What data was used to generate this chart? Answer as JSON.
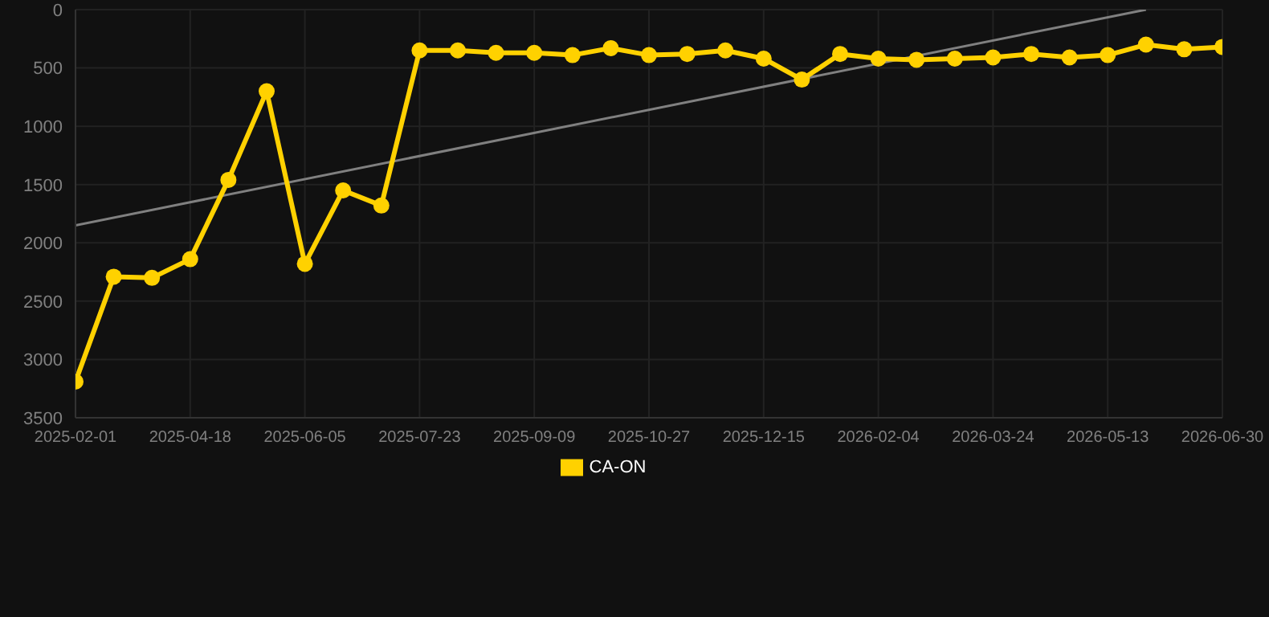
{
  "chart_data": {
    "type": "line",
    "categories": [
      "2025-02-01",
      null,
      null,
      "2025-04-18",
      null,
      null,
      "2025-06-05",
      null,
      null,
      "2025-07-23",
      null,
      null,
      "2025-09-09",
      null,
      null,
      "2025-10-27",
      null,
      null,
      "2025-12-15",
      null,
      null,
      "2026-02-04",
      null,
      null,
      "2026-03-24",
      null,
      null,
      "2026-05-13",
      null,
      null,
      "2026-06-30"
    ],
    "series": [
      {
        "name": "CA-ON",
        "color": "#ffd100",
        "marker": "circle",
        "values": [
          3190,
          2290,
          2300,
          2140,
          1460,
          700,
          2180,
          1550,
          1680,
          350,
          350,
          370,
          370,
          390,
          330,
          390,
          380,
          350,
          420,
          600,
          380,
          420,
          430,
          420,
          410,
          380,
          410,
          390,
          300,
          340,
          320
        ]
      },
      {
        "type": "line",
        "color": "#808080",
        "marker": "none",
        "values": [
          1850,
          null,
          null,
          null,
          null,
          null,
          null,
          null,
          null,
          null,
          null,
          null,
          null,
          null,
          null,
          null,
          null,
          null,
          null,
          null,
          null,
          null,
          null,
          null,
          null,
          null,
          null,
          null,
          0,
          null,
          null
        ]
      }
    ],
    "ylim": [
      3500,
      0
    ],
    "yticks": [
      0,
      500,
      1000,
      1500,
      2000,
      2500,
      3000,
      3500
    ],
    "grid": true,
    "legend": "bottom"
  }
}
